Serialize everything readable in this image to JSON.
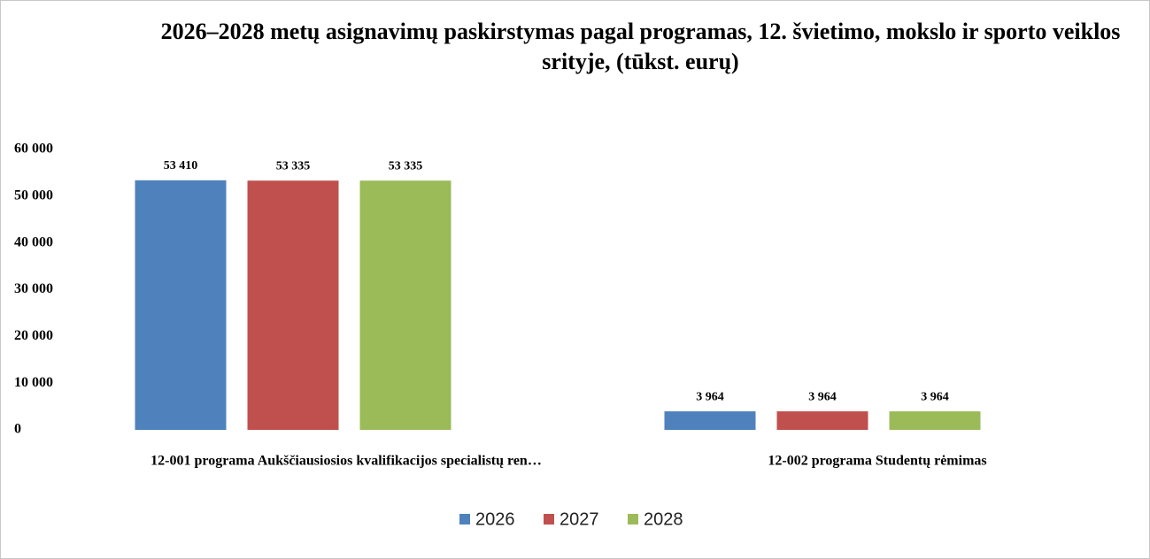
{
  "chart_data": {
    "type": "bar",
    "title": "2026–2028 metų asignavimų paskirstymas pagal programas, 12. švietimo, mokslo ir sporto veiklos srityje, (tūkst. eurų)",
    "categories": [
      "12-001 programa  Aukščiausiosios kvalifikacijos specialistų ren…",
      "12-002 programa Studentų rėmimas"
    ],
    "series": [
      {
        "name": "2026",
        "color": "#4f81bd",
        "values": [
          53410,
          3964
        ],
        "value_labels": [
          "53 410",
          "3 964"
        ]
      },
      {
        "name": "2027",
        "color": "#c0504d",
        "values": [
          53335,
          3964
        ],
        "value_labels": [
          "53 335",
          "3 964"
        ]
      },
      {
        "name": "2028",
        "color": "#9bbb59",
        "values": [
          53335,
          3964
        ],
        "value_labels": [
          "53 335",
          "3 964"
        ]
      }
    ],
    "ylim": [
      0,
      60000
    ],
    "yticks": [
      0,
      {
        "value": 10000,
        "label": "10 000"
      },
      {
        "value": 20000,
        "label": "20 000"
      },
      {
        "value": 30000,
        "label": "30 000"
      },
      {
        "value": 40000,
        "label": "40 000"
      },
      {
        "value": 50000,
        "label": "50 000"
      },
      {
        "value": 60000,
        "label": "60 000"
      }
    ],
    "grid": false,
    "legend": "bottom"
  }
}
